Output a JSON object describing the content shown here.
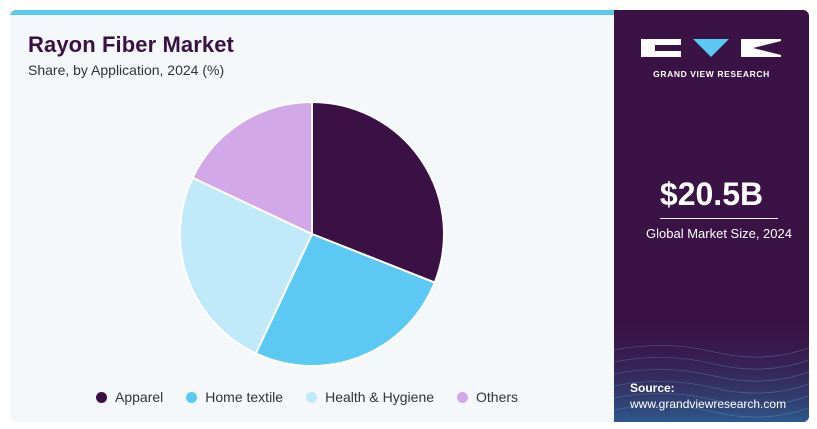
{
  "chart_data": {
    "type": "pie",
    "title": "Rayon Fiber Market",
    "subtitle": "Share, by Application, 2024 (%)",
    "categories": [
      "Apparel",
      "Home textile",
      "Health & Hygiene",
      "Others"
    ],
    "values": [
      31,
      26,
      25,
      18
    ],
    "colors": [
      "#3a1045",
      "#5bc9f4",
      "#c0e9f9",
      "#d2a8e8"
    ],
    "legend_position": "bottom"
  },
  "sidebar": {
    "brand": "GRAND VIEW RESEARCH",
    "market_size_value": "$20.5B",
    "market_size_label": "Global Market Size, 2024",
    "source_label": "Source:",
    "source_url": "www.grandviewresearch.com"
  }
}
